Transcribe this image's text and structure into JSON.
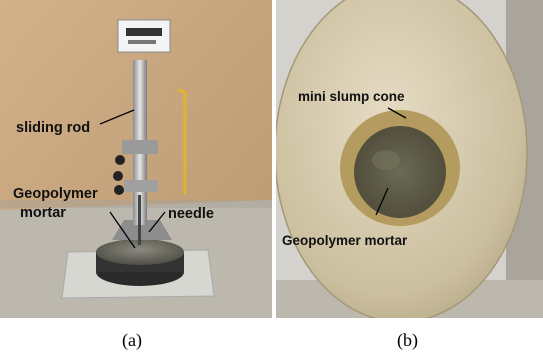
{
  "panel_a": {
    "labels": {
      "sliding_rod": "sliding rod",
      "geopolymer_line1": "Geopolymer",
      "geopolymer_line2": "mortar",
      "needle": "needle"
    },
    "caption": "(a)"
  },
  "panel_b": {
    "labels": {
      "mini_slump_cone": "mini slump cone",
      "geopolymer_mortar": "Geopolymer mortar"
    },
    "caption": "(b)"
  },
  "colors": {
    "wall": "#c9a57f",
    "floor": "#bcb7ad",
    "metal": "#d8c7a6",
    "mortar": "#5a5a4a",
    "annotation_line": "#000000"
  }
}
